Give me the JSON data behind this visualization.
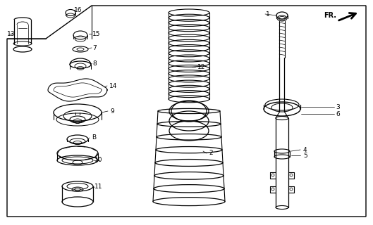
{
  "bg_color": "#ffffff",
  "fig_width": 5.29,
  "fig_height": 3.2,
  "dpi": 100
}
